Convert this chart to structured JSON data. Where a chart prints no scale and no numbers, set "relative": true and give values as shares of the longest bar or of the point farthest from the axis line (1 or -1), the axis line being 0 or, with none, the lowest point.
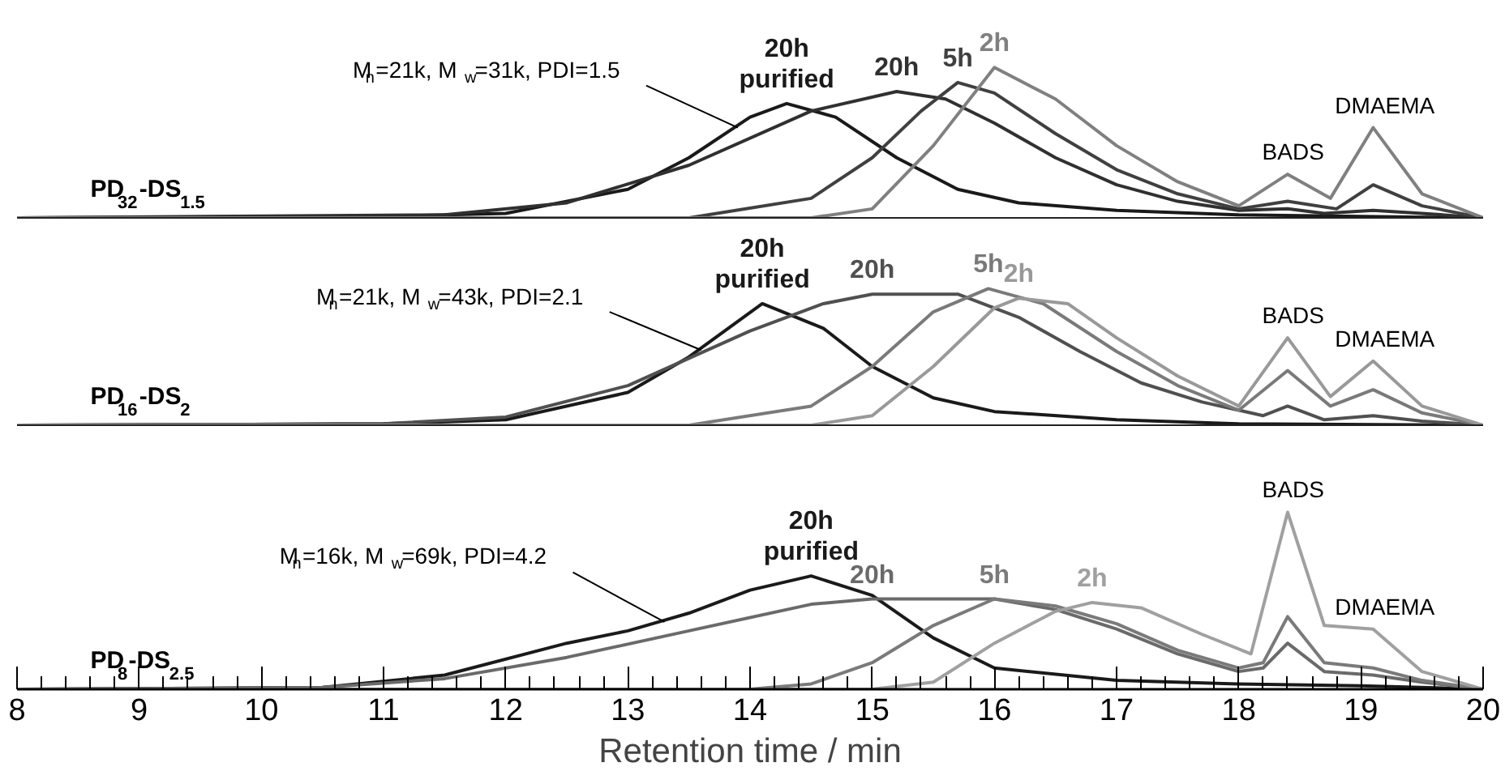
{
  "chart_data": [
    {
      "type": "line",
      "title": "PD$_{32}$-DS$_{1.5}$",
      "relative": true,
      "xlim": [
        8,
        20
      ],
      "xticks": [
        8,
        9,
        10,
        11,
        12,
        13,
        14,
        15,
        16,
        17,
        18,
        19,
        20
      ],
      "tick_labels": false,
      "legend": false,
      "grid": false,
      "annotations": [
        {
          "text": "M$_{n}$=21k, M$_{w}$=31k, PDI=1.5",
          "x": 13.9,
          "y": 0.6
        },
        {
          "text": "BADS",
          "x": 18.4,
          "y": 0.29
        },
        {
          "text": "DMAEMA",
          "x": 19.1,
          "y": 0.6
        }
      ],
      "series": [
        {
          "name": "20h\npurified",
          "color": "#1a1a1a",
          "x": [
            8,
            11,
            12,
            13,
            13.5,
            14,
            14.3,
            14.7,
            15.2,
            15.7,
            16.2,
            17,
            18,
            19,
            20
          ],
          "values": [
            0,
            0.01,
            0.03,
            0.19,
            0.4,
            0.67,
            0.76,
            0.67,
            0.4,
            0.19,
            0.1,
            0.05,
            0.02,
            0.01,
            0
          ]
        },
        {
          "name": "20h",
          "color": "#303030",
          "x": [
            8,
            11.5,
            12.5,
            13.5,
            14.5,
            15.2,
            15.6,
            16,
            16.5,
            17,
            17.5,
            18,
            18.4,
            18.7,
            19.1,
            19.5,
            20
          ],
          "values": [
            0,
            0.02,
            0.1,
            0.35,
            0.71,
            0.84,
            0.79,
            0.63,
            0.4,
            0.22,
            0.11,
            0.05,
            0.06,
            0.03,
            0.05,
            0.03,
            0
          ]
        },
        {
          "name": "5h",
          "color": "#404040",
          "x": [
            8,
            13.5,
            14.5,
            15,
            15.4,
            15.7,
            16,
            16.5,
            17,
            17.5,
            18,
            18.4,
            18.8,
            19.1,
            19.5,
            20
          ],
          "values": [
            0,
            0,
            0.13,
            0.4,
            0.71,
            0.9,
            0.83,
            0.56,
            0.32,
            0.16,
            0.06,
            0.11,
            0.06,
            0.22,
            0.08,
            0
          ]
        },
        {
          "name": "2h",
          "color": "#808080",
          "x": [
            8,
            14.5,
            15,
            15.5,
            16,
            16.5,
            17,
            17.5,
            18,
            18.4,
            18.75,
            19.1,
            19.5,
            20
          ],
          "values": [
            0,
            0,
            0.06,
            0.48,
            1,
            0.79,
            0.48,
            0.24,
            0.08,
            0.29,
            0.13,
            0.6,
            0.16,
            0
          ]
        }
      ]
    },
    {
      "type": "line",
      "title": "PD$_{16}$-DS$_{2}$",
      "relative": true,
      "xlim": [
        8,
        20
      ],
      "xticks": [
        8,
        9,
        10,
        11,
        12,
        13,
        14,
        15,
        16,
        17,
        18,
        19,
        20
      ],
      "tick_labels": false,
      "legend": false,
      "grid": false,
      "annotations": [
        {
          "text": "M$_{n}$=21k, M$_{w}$=43k, PDI=2.1",
          "x": 13.6,
          "y": 0.55
        },
        {
          "text": "BADS",
          "x": 18.4,
          "y": 0.64
        },
        {
          "text": "DMAEMA",
          "x": 19.1,
          "y": 0.47
        }
      ],
      "series": [
        {
          "name": "20h\npurified",
          "color": "#1a1a1a",
          "x": [
            8,
            11,
            12,
            13,
            13.5,
            14.1,
            14.6,
            15,
            15.5,
            16,
            17,
            18,
            20
          ],
          "values": [
            0,
            0.01,
            0.04,
            0.24,
            0.5,
            0.89,
            0.71,
            0.43,
            0.2,
            0.1,
            0.04,
            0.01,
            0
          ]
        },
        {
          "name": "20h",
          "color": "#505050",
          "x": [
            8,
            11,
            12,
            13,
            14,
            14.6,
            15,
            15.7,
            16.2,
            16.7,
            17.2,
            17.7,
            18.2,
            18.4,
            18.7,
            19.1,
            19.5,
            20
          ],
          "values": [
            0,
            0.01,
            0.06,
            0.29,
            0.69,
            0.89,
            0.96,
            0.96,
            0.79,
            0.54,
            0.31,
            0.17,
            0.07,
            0.14,
            0.04,
            0.07,
            0.03,
            0
          ]
        },
        {
          "name": "5h",
          "color": "#7a7a7a",
          "x": [
            8,
            13.5,
            14.5,
            15,
            15.5,
            15.95,
            16.4,
            17,
            17.5,
            18,
            18.4,
            18.75,
            19.1,
            19.5,
            20
          ],
          "values": [
            0,
            0,
            0.14,
            0.43,
            0.83,
            1,
            0.89,
            0.54,
            0.29,
            0.11,
            0.4,
            0.14,
            0.26,
            0.09,
            0
          ]
        },
        {
          "name": "2h",
          "color": "#999999",
          "x": [
            8,
            14.5,
            15,
            15.5,
            16,
            16.2,
            16.6,
            17,
            17.5,
            18,
            18.4,
            18.75,
            19.1,
            19.5,
            20
          ],
          "values": [
            0,
            0,
            0.07,
            0.43,
            0.86,
            0.93,
            0.89,
            0.64,
            0.36,
            0.14,
            0.64,
            0.21,
            0.47,
            0.14,
            0
          ]
        }
      ]
    },
    {
      "type": "line",
      "title": "PD$_{8}$-DS$_{2.5}$",
      "relative": true,
      "xlim": [
        8,
        20
      ],
      "xticks": [
        8,
        9,
        10,
        11,
        12,
        13,
        14,
        15,
        16,
        17,
        18,
        19,
        20
      ],
      "xlabel": "Retention time / min",
      "tick_labels": "x",
      "legend": false,
      "grid": false,
      "annotations": [
        {
          "text": "M$_{n}$=16k, M$_{w}$=69k, PDI=4.2",
          "x": 13.3,
          "y": 0.38
        },
        {
          "text": "BADS",
          "x": 18.4,
          "y": 1
        },
        {
          "text": "DMAEMA",
          "x": 19.1,
          "y": 0.34
        }
      ],
      "series": [
        {
          "name": "20h\npurified",
          "color": "#1a1a1a",
          "x": [
            8,
            10.5,
            11.5,
            12.5,
            13,
            13.5,
            14,
            14.5,
            15,
            15.5,
            16,
            17,
            18,
            19,
            20
          ],
          "values": [
            0,
            0.01,
            0.08,
            0.26,
            0.33,
            0.43,
            0.56,
            0.64,
            0.53,
            0.29,
            0.12,
            0.05,
            0.03,
            0.02,
            0
          ]
        },
        {
          "name": "20h",
          "color": "#6a6a6a",
          "x": [
            8,
            10.5,
            11.5,
            12.5,
            13.5,
            14.5,
            15,
            16,
            16.5,
            17,
            17.5,
            18,
            18.2,
            18.4,
            18.7,
            19.1,
            19.5,
            20
          ],
          "values": [
            0,
            0.01,
            0.06,
            0.18,
            0.33,
            0.48,
            0.51,
            0.51,
            0.45,
            0.34,
            0.2,
            0.1,
            0.12,
            0.26,
            0.1,
            0.08,
            0.04,
            0
          ]
        },
        {
          "name": "5h",
          "color": "#7a7a7a",
          "x": [
            8,
            14,
            14.5,
            15,
            15.5,
            16,
            16.5,
            17,
            17.5,
            18,
            18.2,
            18.4,
            18.7,
            19.1,
            19.5,
            20
          ],
          "values": [
            0,
            0,
            0.03,
            0.15,
            0.36,
            0.51,
            0.47,
            0.37,
            0.22,
            0.12,
            0.15,
            0.41,
            0.15,
            0.12,
            0.05,
            0
          ]
        },
        {
          "name": "2h",
          "color": "#a0a0a0",
          "x": [
            8,
            15,
            15.5,
            16,
            16.5,
            16.8,
            17.2,
            17.7,
            18.1,
            18.4,
            18.7,
            19.1,
            19.5,
            20
          ],
          "values": [
            0,
            0,
            0.04,
            0.26,
            0.44,
            0.49,
            0.46,
            0.31,
            0.2,
            1,
            0.36,
            0.34,
            0.1,
            0
          ]
        }
      ]
    }
  ]
}
